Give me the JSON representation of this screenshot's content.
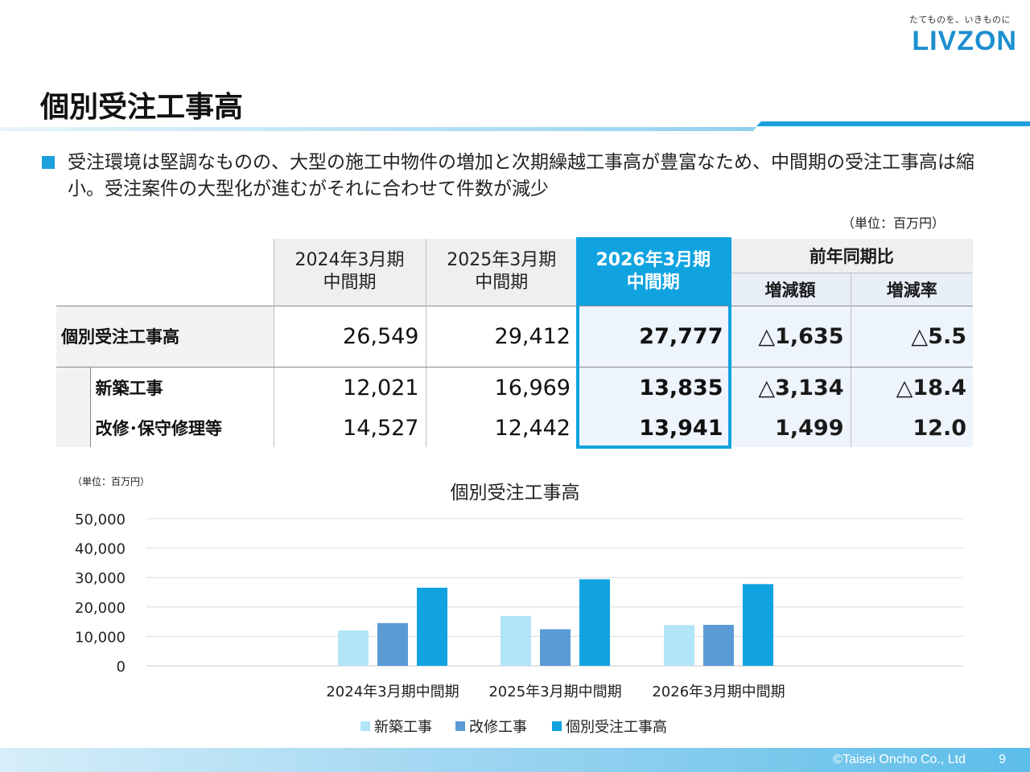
{
  "header": {
    "tagline": "たてものを、いきものに",
    "logo": "LIVZON"
  },
  "title": "個別受注工事高",
  "bullet": "受注環境は堅調なものの、大型の施工中物件の増加と次期繰越工事高が豊富なため、中間期の受注工事高は縮小。受注案件の大型化が進むがそれに合わせて件数が減少",
  "table_unit": "（単位：百万円）",
  "table": {
    "col_fy2024": "2024年3月期\n中間期",
    "col_fy2025": "2025年3月期\n中間期",
    "col_fy2026": "2026年3月期\n中間期",
    "col_yoy": "前年同期比",
    "col_diff": "増減額",
    "col_rate": "増減率",
    "rows": [
      {
        "label": "個別受注工事高",
        "v2024": "26,549",
        "v2025": "29,412",
        "v2026": "27,777",
        "diff": "△1,635",
        "rate": "△5.5"
      },
      {
        "label": "新築工事",
        "v2024": "12,021",
        "v2025": "16,969",
        "v2026": "13,835",
        "diff": "△3,134",
        "rate": "△18.4"
      },
      {
        "label": "改修･保守修理等",
        "v2024": "14,527",
        "v2025": "12,442",
        "v2026": "13,941",
        "diff": "1,499",
        "rate": "12.0"
      }
    ]
  },
  "chart_unit": "（単位：百万円）",
  "chart_data": {
    "type": "bar",
    "title": "個別受注工事高",
    "categories": [
      "2024年3月期中間期",
      "2025年3月期中間期",
      "2026年3月期中間期"
    ],
    "series": [
      {
        "name": "新築工事",
        "values": [
          12021,
          16969,
          13835
        ],
        "color": "#b3e5f8"
      },
      {
        "name": "改修工事",
        "values": [
          14527,
          12442,
          13941
        ],
        "color": "#5b9bd5"
      },
      {
        "name": "個別受注工事高",
        "values": [
          26549,
          29412,
          27777
        ],
        "color": "#11a3e0"
      }
    ],
    "ylim": [
      0,
      50000
    ],
    "yticks": [
      "0",
      "10,000",
      "20,000",
      "30,000",
      "40,000",
      "50,000"
    ],
    "grid": true,
    "legend": "bottom"
  },
  "footer": {
    "copyright": "©Taisei Oncho Co., Ltd",
    "page": "9"
  }
}
